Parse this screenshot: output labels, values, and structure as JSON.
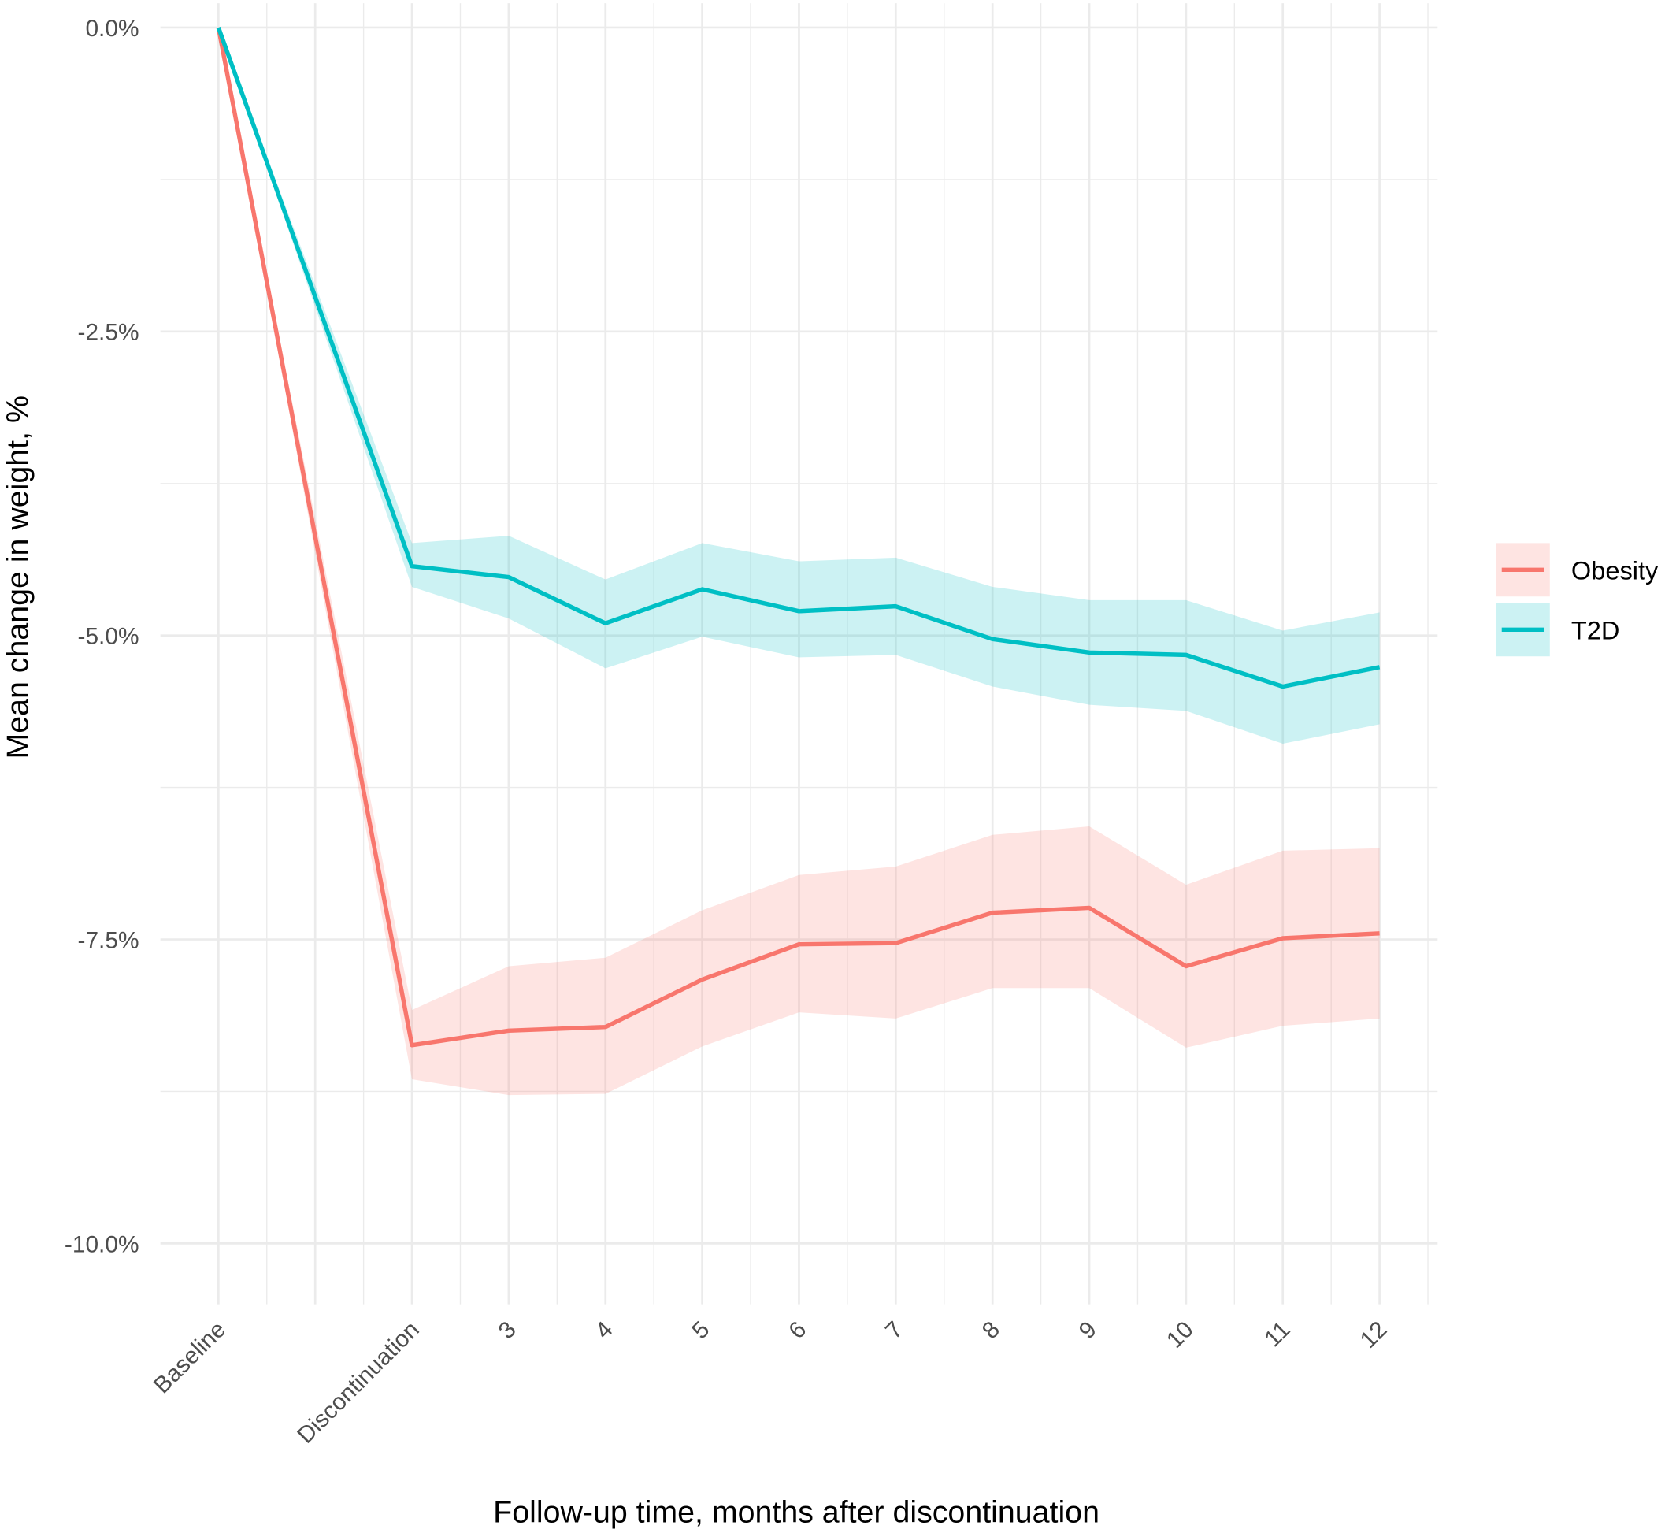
{
  "chart_data": {
    "type": "line",
    "x_label": "Follow-up time, months after discontinuation",
    "y_label": "Mean change in weight, %",
    "x": [
      0,
      2,
      3,
      4,
      5,
      6,
      7,
      8,
      9,
      10,
      11,
      12
    ],
    "xlim": [
      -0.6,
      12.6
    ],
    "xticks": [
      {
        "value": 0,
        "label": "Baseline"
      },
      {
        "value": 2,
        "label": "Discontinuation"
      },
      3,
      4,
      5,
      6,
      7,
      8,
      9,
      10,
      11,
      12
    ],
    "ylim": [
      -10.5,
      0.2
    ],
    "yticks": [
      {
        "value": 0,
        "label": "0.0%"
      },
      {
        "value": -2.5,
        "label": "-2.5%"
      },
      {
        "value": -5,
        "label": "-5.0%"
      },
      {
        "value": -7.5,
        "label": "-7.5%"
      },
      {
        "value": -10,
        "label": "-10.0%"
      }
    ],
    "grid": true,
    "legend": "right",
    "series": [
      {
        "name": "Obesity",
        "color": "#F8766D",
        "values": [
          0,
          -8.37,
          -8.25,
          -8.22,
          -7.83,
          -7.54,
          -7.53,
          -7.28,
          -7.24,
          -7.72,
          -7.49,
          -7.45
        ],
        "upper": [
          0,
          -8.08,
          -7.72,
          -7.65,
          -7.26,
          -6.97,
          -6.9,
          -6.64,
          -6.57,
          -7.05,
          -6.77,
          -6.75
        ],
        "lower": [
          0,
          -8.65,
          -8.78,
          -8.77,
          -8.38,
          -8.1,
          -8.15,
          -7.9,
          -7.9,
          -8.39,
          -8.21,
          -8.15
        ]
      },
      {
        "name": "T2D",
        "color": "#00BFC4",
        "values": [
          0,
          -4.43,
          -4.52,
          -4.9,
          -4.62,
          -4.8,
          -4.76,
          -5.03,
          -5.14,
          -5.16,
          -5.42,
          -5.26
        ],
        "upper": [
          0,
          -4.24,
          -4.18,
          -4.54,
          -4.24,
          -4.39,
          -4.36,
          -4.6,
          -4.71,
          -4.71,
          -4.96,
          -4.81
        ],
        "lower": [
          0,
          -4.6,
          -4.86,
          -5.27,
          -5.01,
          -5.18,
          -5.16,
          -5.42,
          -5.57,
          -5.62,
          -5.89,
          -5.73
        ]
      }
    ]
  }
}
